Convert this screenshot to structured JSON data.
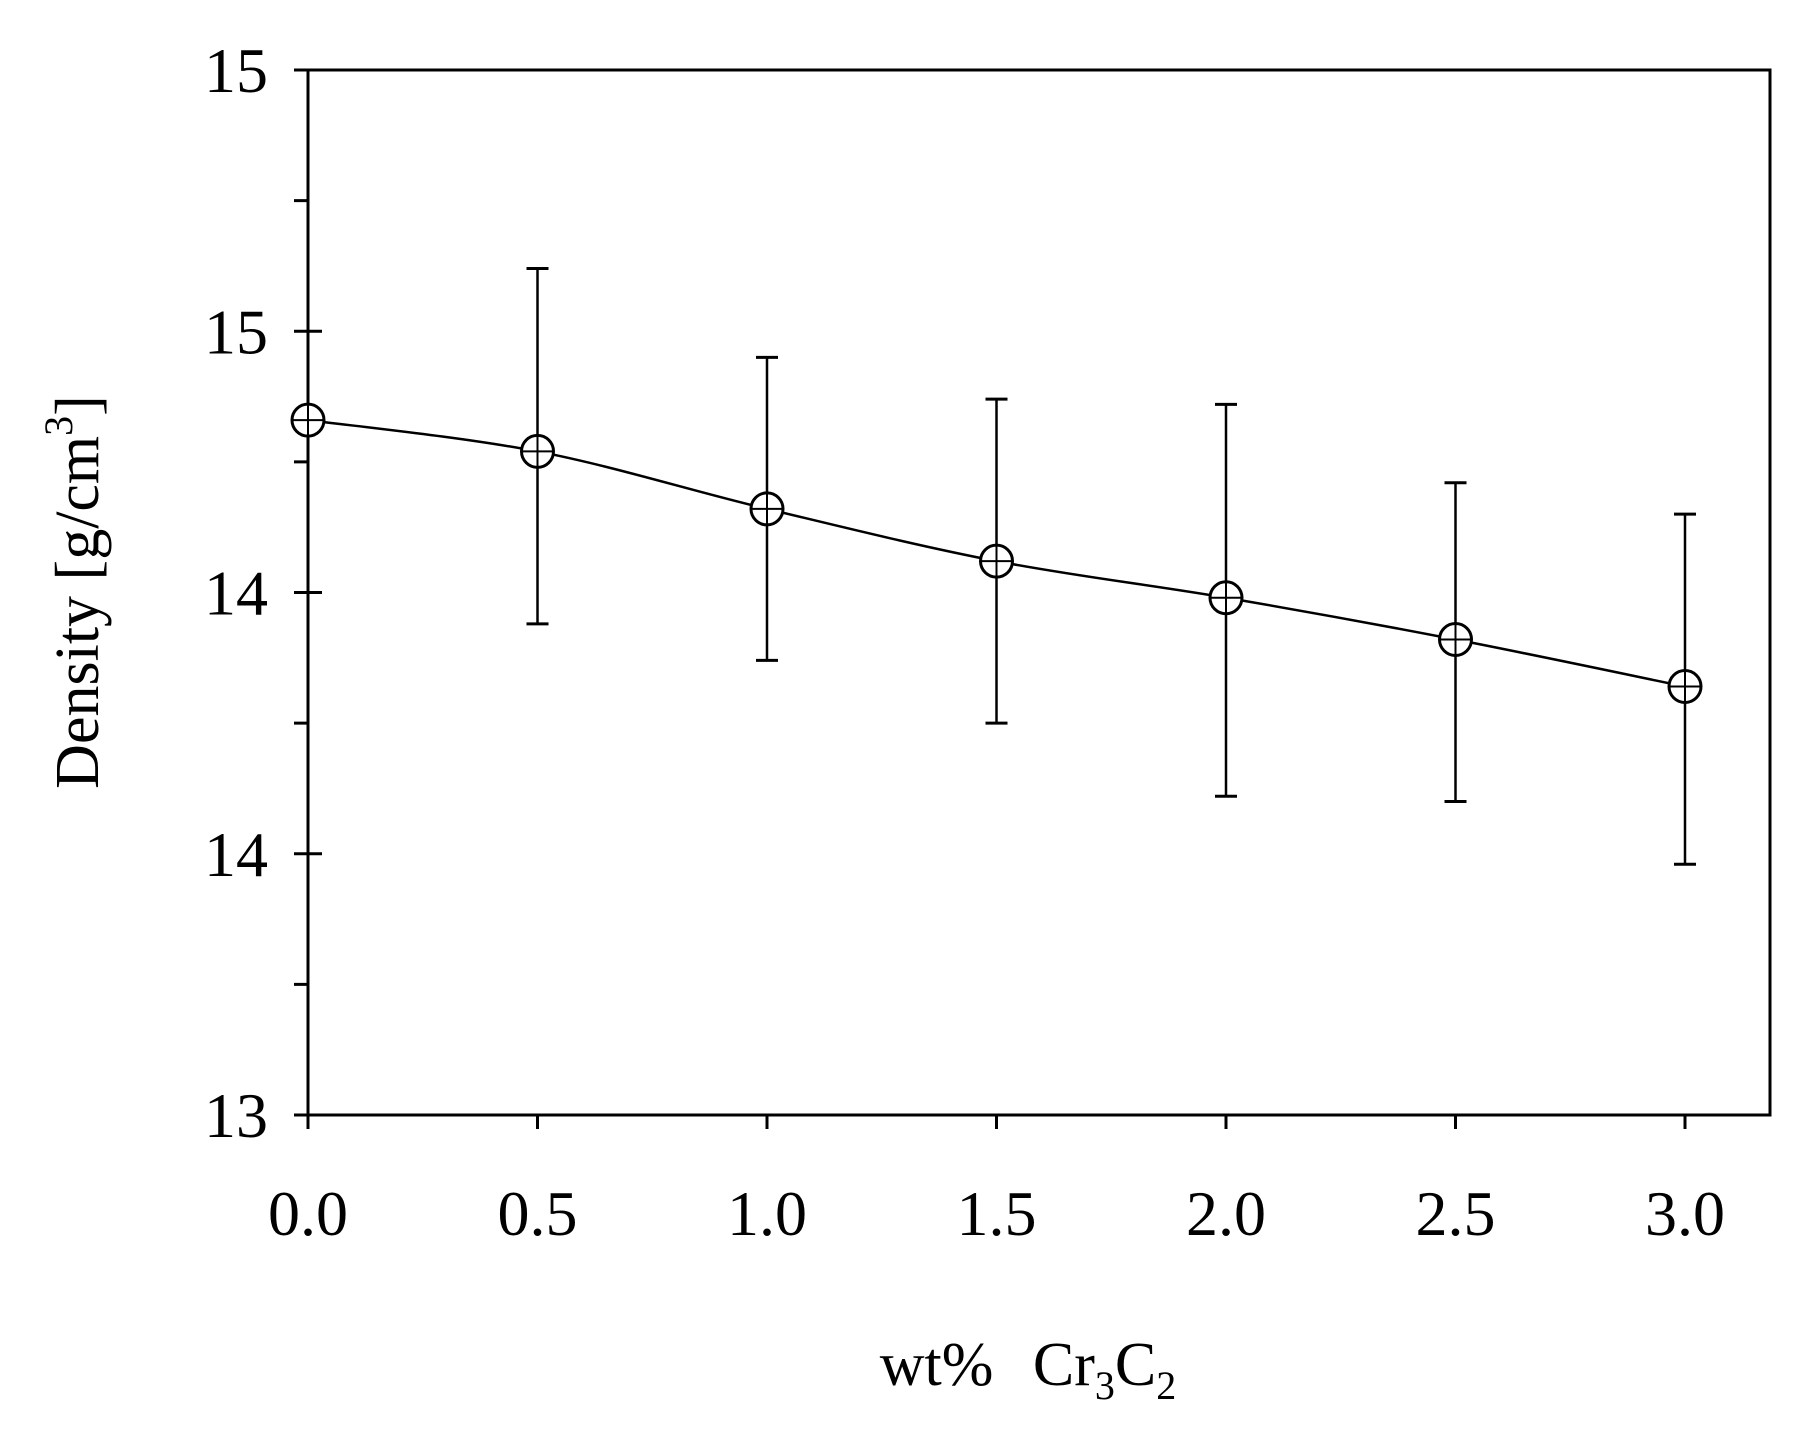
{
  "chart_data": {
    "type": "line",
    "title": "",
    "xlabel": {
      "prefix": "wt%",
      "formula": [
        {
          "text": "Cr"
        },
        {
          "text": "3",
          "sub": true
        },
        {
          "text": "C"
        },
        {
          "text": "2",
          "sub": true
        }
      ]
    },
    "ylabel": {
      "main": "Density [g/cm",
      "sup": "3",
      "close": "]"
    },
    "xlim": [
      0,
      3.2
    ],
    "ylim": [
      13,
      15
    ],
    "x_ticks": [
      0,
      0.5,
      1,
      1.5,
      2,
      2.5,
      3
    ],
    "x_tick_labels": [
      "0.0",
      "0.5",
      "1.0",
      "1.5",
      "2.0",
      "2.5",
      "3.0"
    ],
    "y_ticks": [
      13,
      13.5,
      14,
      14.5,
      15
    ],
    "y_tick_labels": [
      "13",
      "14",
      "14",
      "15",
      "15"
    ],
    "y_minor_ticks": [
      13.25,
      13.75,
      14.25,
      14.75
    ],
    "grid": false,
    "series": [
      {
        "name": "Density",
        "marker": "circle-cross",
        "x": [
          0,
          0.5,
          1,
          1.5,
          2,
          2.5,
          3
        ],
        "y": [
          14.33,
          14.27,
          14.16,
          14.06,
          13.99,
          13.91,
          13.82
        ],
        "err_high": [
          14.33,
          14.62,
          14.45,
          14.37,
          14.36,
          14.21,
          14.15
        ],
        "err_low": [
          14.33,
          13.94,
          13.87,
          13.75,
          13.61,
          13.6,
          13.48
        ]
      }
    ]
  }
}
